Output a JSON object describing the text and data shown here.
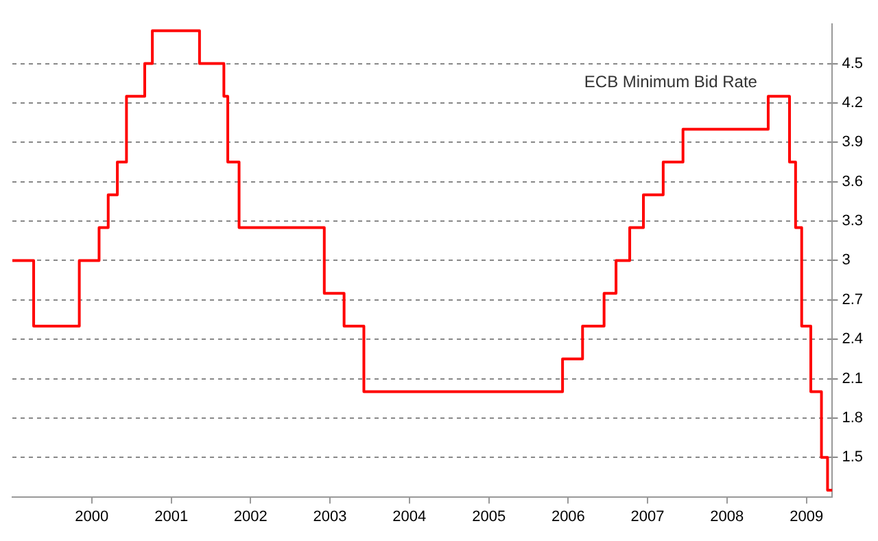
{
  "chart_data": {
    "type": "step",
    "x": [
      "1999-01-01",
      "1999-04-09",
      "1999-11-05",
      "2000-02-04",
      "2000-03-17",
      "2000-04-28",
      "2000-06-09",
      "2000-09-01",
      "2000-10-06",
      "2001-05-11",
      "2001-08-31",
      "2001-09-18",
      "2001-11-09",
      "2002-12-06",
      "2003-03-07",
      "2003-06-06",
      "2005-12-06",
      "2006-03-08",
      "2006-06-15",
      "2006-08-09",
      "2006-10-11",
      "2006-12-13",
      "2007-03-14",
      "2007-06-13",
      "2008-07-09",
      "2008-10-15",
      "2008-11-12",
      "2008-12-10",
      "2009-01-21",
      "2009-03-11",
      "2009-04-08",
      "2009-04-30"
    ],
    "series": [
      {
        "name": "ECB Minimum Bid Rate",
        "color": "#ff0000",
        "values": [
          3.0,
          2.5,
          3.0,
          3.25,
          3.5,
          3.75,
          4.25,
          4.5,
          4.75,
          4.5,
          4.25,
          3.75,
          3.25,
          2.75,
          2.5,
          2.0,
          2.25,
          2.5,
          2.75,
          3.0,
          3.25,
          3.5,
          3.75,
          4.0,
          4.25,
          3.75,
          3.25,
          2.5,
          2.0,
          1.5,
          1.25,
          1.25
        ]
      }
    ],
    "xlim": [
      "1999-01-01",
      "2009-04-30"
    ],
    "xticks": [
      {
        "value": "2000-01-01",
        "label": "2000"
      },
      {
        "value": "2001-01-01",
        "label": "2001"
      },
      {
        "value": "2002-01-01",
        "label": "2002"
      },
      {
        "value": "2003-01-01",
        "label": "2003"
      },
      {
        "value": "2004-01-01",
        "label": "2004"
      },
      {
        "value": "2005-01-01",
        "label": "2005"
      },
      {
        "value": "2006-01-01",
        "label": "2006"
      },
      {
        "value": "2007-01-01",
        "label": "2007"
      },
      {
        "value": "2008-01-01",
        "label": "2008"
      },
      {
        "value": "2009-01-01",
        "label": "2009"
      }
    ],
    "ylim": [
      1.2,
      4.8
    ],
    "yticks": [
      1.5,
      1.8,
      2.1,
      2.4,
      2.7,
      3,
      3.3,
      3.6,
      3.9,
      4.2,
      4.5
    ],
    "grid": "y",
    "legend": false,
    "line_style": "solid",
    "marker": "none"
  }
}
